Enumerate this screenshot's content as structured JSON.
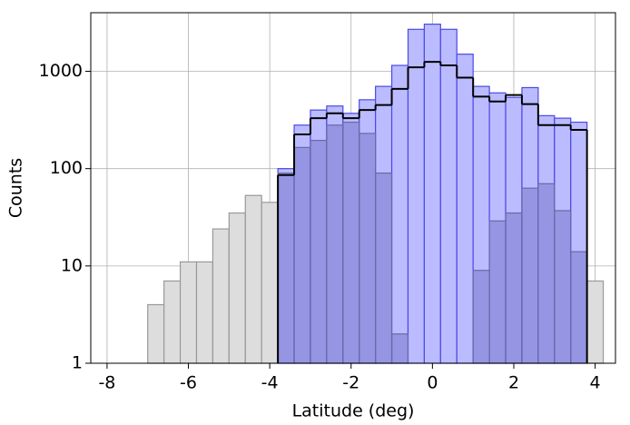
{
  "chart_data": {
    "type": "histogram",
    "xlabel": "Latitude (deg)",
    "ylabel": "Counts",
    "bins": [
      -7.0,
      -6.6,
      -6.2,
      -5.8,
      -5.4,
      -5.0,
      -4.6,
      -4.2,
      -3.8,
      -3.4,
      -3.0,
      -2.6,
      -2.2,
      -1.8,
      -1.4,
      -1.0,
      -0.6,
      -0.2,
      0.2,
      0.6,
      1.0,
      1.4,
      1.8,
      2.2,
      2.6,
      3.0,
      3.4,
      3.8,
      4.2
    ],
    "series": [
      {
        "style": "filled",
        "color": "#dddddd",
        "edgecolor": "#999999",
        "values": [
          4,
          7,
          11,
          11,
          24,
          35,
          53,
          45,
          null,
          null,
          null,
          null,
          null,
          null,
          null,
          null,
          null,
          null,
          null,
          null,
          null,
          null,
          null,
          null,
          null,
          null,
          null,
          7
        ]
      },
      {
        "style": "filled",
        "color": "#bbbbff",
        "edgecolor": "#4a4ae6",
        "values": [
          null,
          null,
          null,
          null,
          null,
          null,
          null,
          null,
          100,
          280,
          400,
          440,
          370,
          510,
          700,
          1150,
          2700,
          3050,
          2700,
          1500,
          700,
          600,
          540,
          680,
          350,
          330,
          300,
          null
        ]
      },
      {
        "style": "filled",
        "color": "#6f6fc8",
        "edgecolor": "#6a6aa8",
        "values": [
          null,
          null,
          null,
          null,
          null,
          null,
          null,
          null,
          90,
          165,
          195,
          280,
          300,
          230,
          90,
          2,
          null,
          null,
          null,
          null,
          9,
          29,
          35,
          63,
          70,
          37,
          14,
          null
        ]
      },
      {
        "style": "step",
        "color": "#000000",
        "values": [
          null,
          null,
          null,
          null,
          null,
          null,
          null,
          null,
          86,
          225,
          330,
          370,
          330,
          400,
          450,
          660,
          1100,
          1250,
          1150,
          860,
          550,
          490,
          570,
          460,
          280,
          280,
          250,
          null
        ]
      }
    ],
    "xlim": [
      -8.4,
      4.5
    ],
    "ylim": [
      1,
      4000
    ],
    "yscale": "log",
    "xticks": [
      -8,
      -6,
      -4,
      -2,
      0,
      2,
      4
    ],
    "yticks": [
      1,
      10,
      100,
      1000
    ],
    "grid": true
  }
}
